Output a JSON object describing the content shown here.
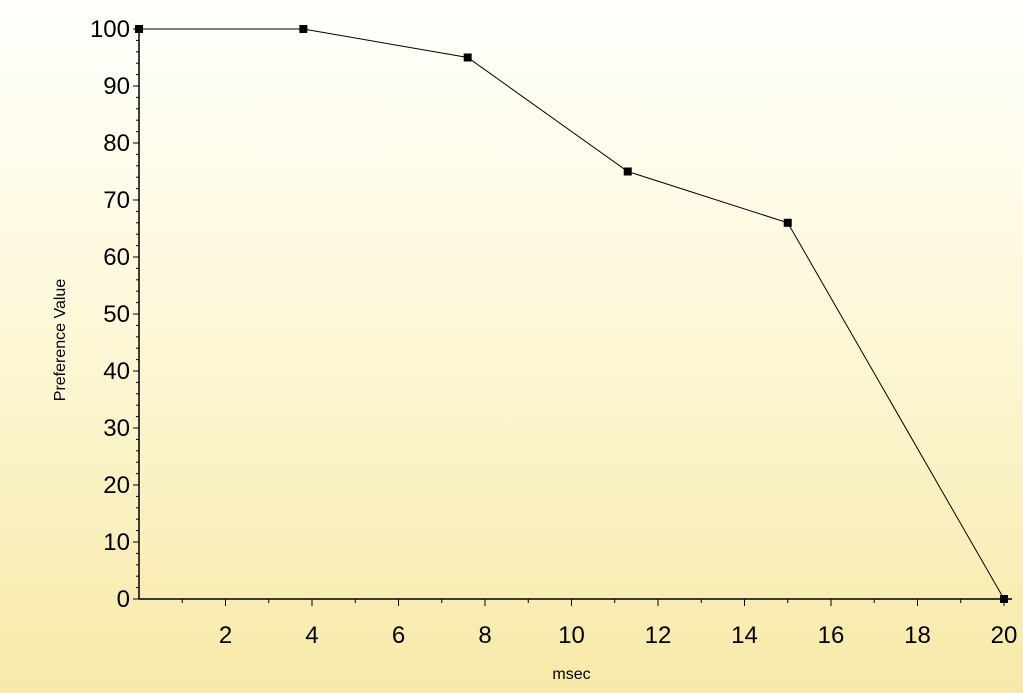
{
  "chart_data": {
    "type": "line",
    "title": "",
    "xlabel": "msec",
    "ylabel": "Preference Value",
    "xlim": [
      0,
      20
    ],
    "ylim": [
      0,
      100
    ],
    "x_ticks": [
      2,
      4,
      6,
      8,
      10,
      12,
      14,
      16,
      18,
      20
    ],
    "y_ticks": [
      0,
      10,
      20,
      30,
      40,
      50,
      60,
      70,
      80,
      90,
      100
    ],
    "grid": false,
    "legend": "none",
    "series": [
      {
        "x": [
          0,
          3.8,
          7.6,
          11.3,
          15,
          20
        ],
        "y": [
          100,
          100,
          95,
          75,
          66,
          0
        ],
        "color": "#000000",
        "marker": "square"
      }
    ]
  }
}
